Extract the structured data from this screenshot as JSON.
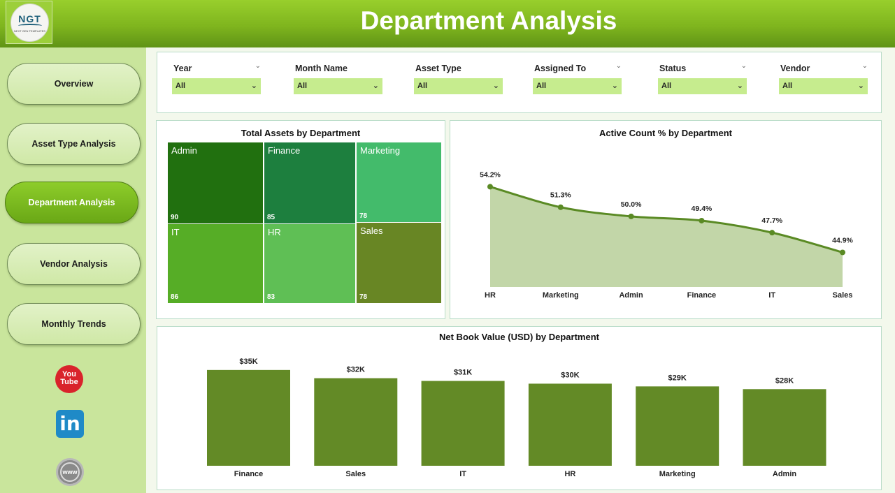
{
  "header": {
    "title": "Department Analysis",
    "logo_text": "NGT",
    "logo_subtext": "NEXT GEN TEMPLATES"
  },
  "sidebar": {
    "items": [
      {
        "label": "Overview",
        "active": false
      },
      {
        "label": "Asset Type Analysis",
        "active": false
      },
      {
        "label": "Department Analysis",
        "active": true
      },
      {
        "label": "Vendor Analysis",
        "active": false
      },
      {
        "label": "Monthly Trends",
        "active": false
      }
    ],
    "social": {
      "youtube_text": "You Tube",
      "linkedin_text": "in",
      "web_text": "www"
    }
  },
  "filters": [
    {
      "label": "Year",
      "value": "All"
    },
    {
      "label": "Month Name",
      "value": "All"
    },
    {
      "label": "Asset Type",
      "value": "All"
    },
    {
      "label": "Assigned To",
      "value": "All"
    },
    {
      "label": "Status",
      "value": "All"
    },
    {
      "label": "Vendor",
      "value": "All"
    }
  ],
  "treemap": {
    "title": "Total Assets by Department",
    "cells": [
      {
        "name": "Admin",
        "value": 90,
        "color": "#21700f"
      },
      {
        "name": "Finance",
        "value": 85,
        "color": "#1d7f3e"
      },
      {
        "name": "Marketing",
        "value": 78,
        "color": "#43bb6b"
      },
      {
        "name": "IT",
        "value": 86,
        "color": "#56ad26"
      },
      {
        "name": "HR",
        "value": 83,
        "color": "#5fbf55"
      },
      {
        "name": "Sales",
        "value": 78,
        "color": "#688624"
      }
    ]
  },
  "chart_data": [
    {
      "type": "treemap",
      "title": "Total Assets by Department",
      "categories": [
        "Admin",
        "Finance",
        "Marketing",
        "IT",
        "HR",
        "Sales"
      ],
      "values": [
        90,
        85,
        78,
        86,
        83,
        78
      ]
    },
    {
      "type": "area",
      "title": "Active Count % by Department",
      "categories": [
        "HR",
        "Marketing",
        "Admin",
        "Finance",
        "IT",
        "Sales"
      ],
      "values": [
        54.2,
        51.3,
        50.0,
        49.4,
        47.7,
        44.9
      ],
      "labels": [
        "54.2%",
        "51.3%",
        "50.0%",
        "49.4%",
        "47.7%",
        "44.9%"
      ],
      "ylim": [
        40,
        58
      ],
      "color": "#5a8a24",
      "fill": "#c2d6a8",
      "grid": false
    },
    {
      "type": "bar",
      "title": "Net Book Value (USD) by Department",
      "categories": [
        "Finance",
        "Sales",
        "IT",
        "HR",
        "Marketing",
        "Admin"
      ],
      "values": [
        35,
        32,
        31,
        30,
        29,
        28
      ],
      "labels": [
        "$35K",
        "$32K",
        "$31K",
        "$30K",
        "$29K",
        "$28K"
      ],
      "ylim": [
        0,
        37
      ],
      "color": "#638a26",
      "grid": false
    }
  ]
}
